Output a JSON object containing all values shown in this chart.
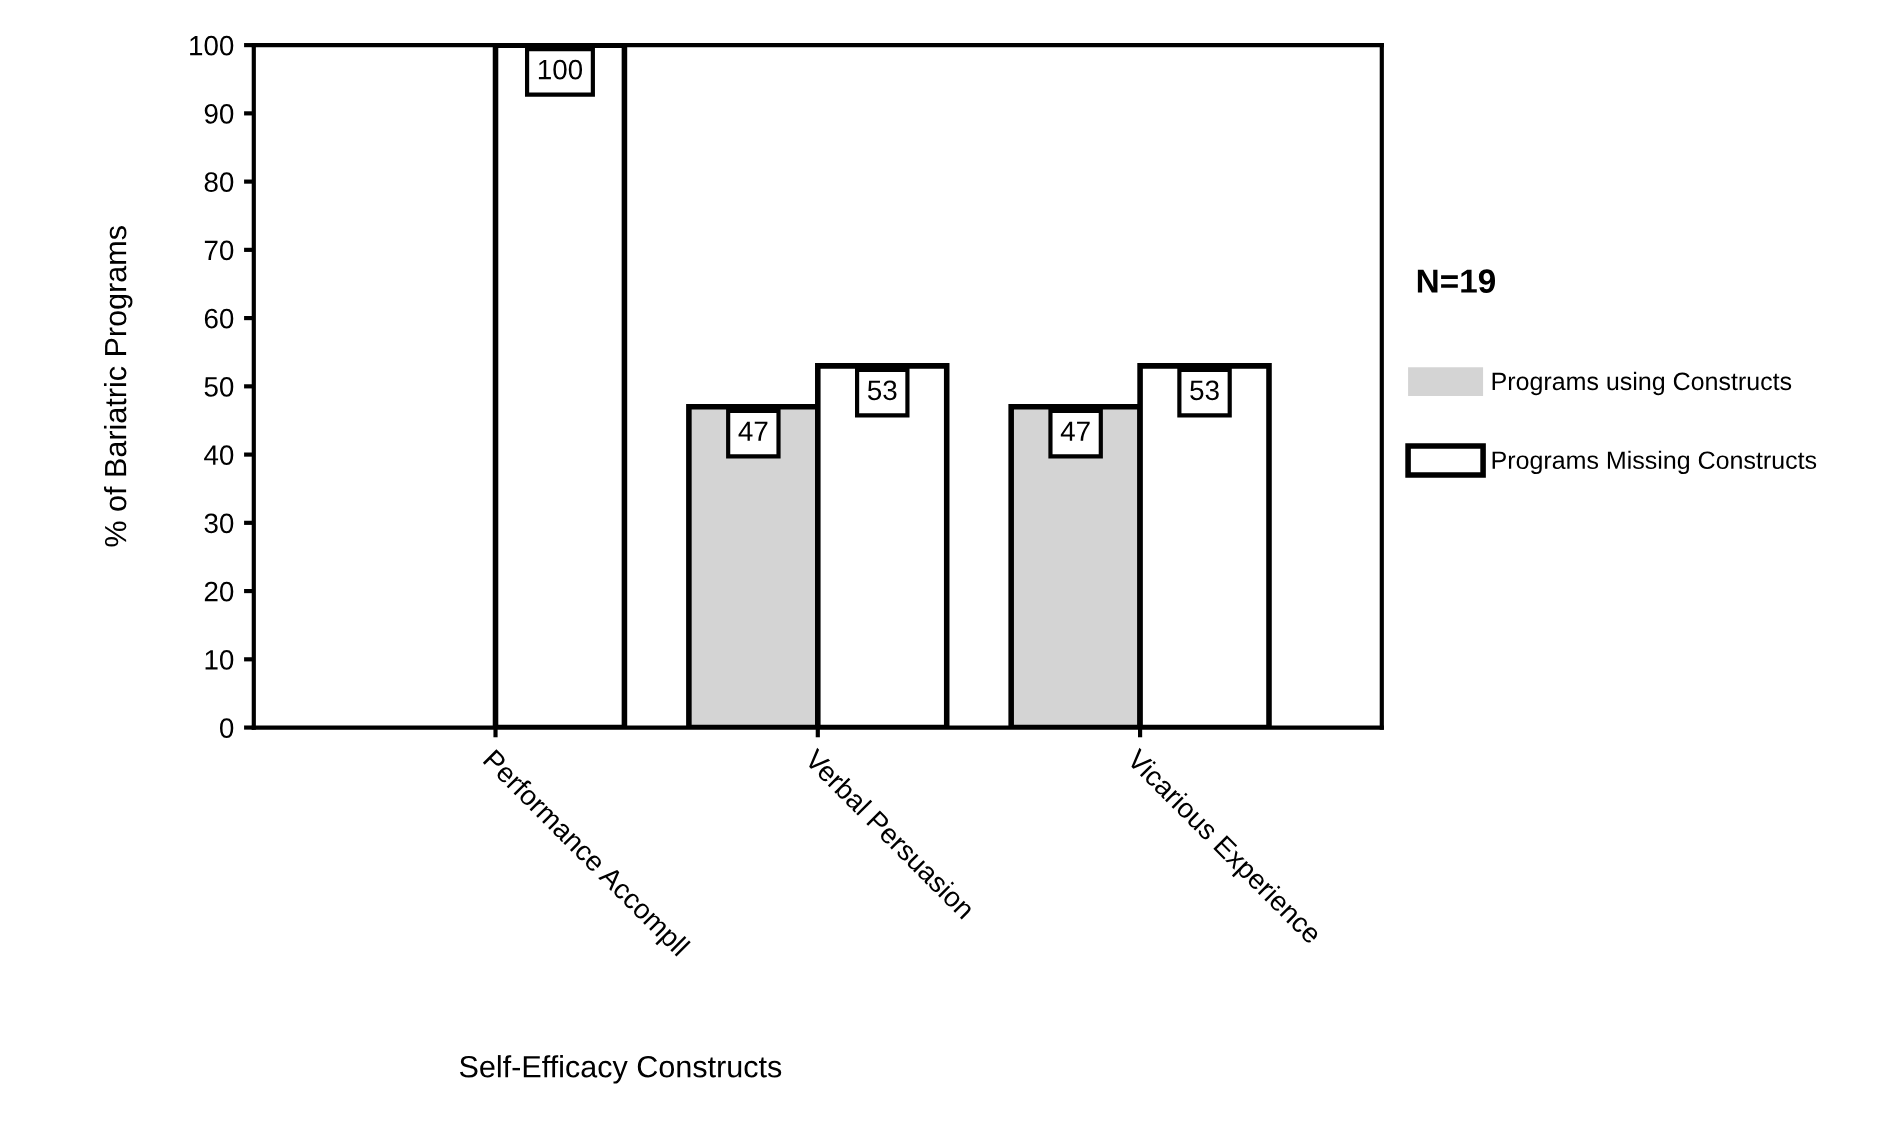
{
  "chart_data": {
    "type": "bar",
    "xlabel": "Self-Efficacy Constructs",
    "ylabel": "% of Bariatric Programs",
    "categories": [
      "Performance Accompll",
      "Verbal Persuasion",
      "Vicarious Experience"
    ],
    "series": [
      {
        "name": "Programs using Constructs",
        "color": "#d4d4d4",
        "values": [
          0,
          47,
          47
        ],
        "value_labels": [
          null,
          "47",
          "47"
        ]
      },
      {
        "name": "Programs Missing Constructs",
        "color": "#ffffff",
        "values": [
          100,
          53,
          53
        ],
        "value_labels": [
          "100",
          "53",
          "53"
        ]
      }
    ],
    "ylim": [
      0,
      100
    ],
    "yticks": [
      0,
      10,
      20,
      30,
      40,
      50,
      60,
      70,
      80,
      90,
      100
    ],
    "grid": false,
    "legend": "right",
    "annotations": [
      "N=19"
    ]
  }
}
